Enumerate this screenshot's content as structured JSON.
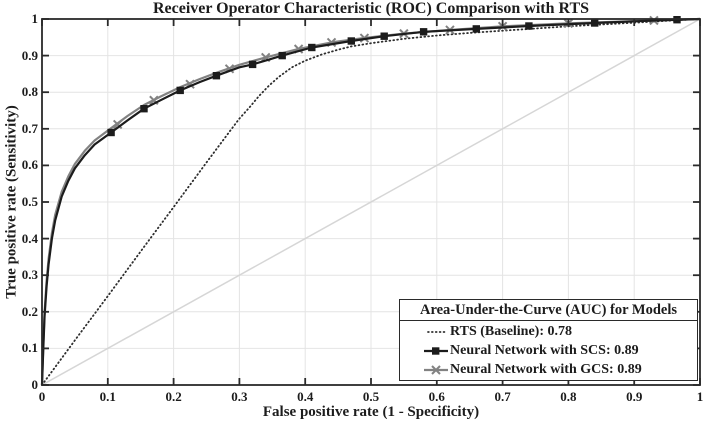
{
  "chart_data": {
    "type": "line",
    "title": "Receiver Operator Characteristic (ROC) Comparison with RTS",
    "xlabel": "False positive rate (1 - Specificity)",
    "ylabel": "True positive rate (Sensitivity)",
    "xlim": [
      0,
      1
    ],
    "ylim": [
      0,
      1
    ],
    "xticks": [
      "0",
      "0.1",
      "0.2",
      "0.3",
      "0.4",
      "0.5",
      "0.6",
      "0.7",
      "0.8",
      "0.9",
      "1"
    ],
    "yticks": [
      "0",
      "0.1",
      "0.2",
      "0.3",
      "0.4",
      "0.5",
      "0.6",
      "0.7",
      "0.8",
      "0.9",
      "1"
    ],
    "grid": true,
    "grid_color": "#e4e4e4",
    "axis_color": "#2a2a2a",
    "legend": {
      "title": "Area-Under-the-Curve (AUC) for Models",
      "position": "bottom-right",
      "entries": [
        {
          "label": "RTS (Baseline): 0.78",
          "style": "dotted",
          "color": "#2e2e2e",
          "auc": 0.78
        },
        {
          "label": "Neural Network with SCS: 0.89",
          "style": "solid-square",
          "color": "#1c1c1c",
          "auc": 0.89
        },
        {
          "label": "Neural Network with GCS: 0.89",
          "style": "solid-x",
          "color": "#828282",
          "auc": 0.89
        }
      ]
    },
    "reference_line": {
      "name": "chance-diagonal",
      "color": "#d6d6d6",
      "points": [
        [
          0,
          0
        ],
        [
          1,
          1
        ]
      ]
    },
    "series": [
      {
        "name": "RTS (Baseline)",
        "auc": 0.78,
        "style": "dotted",
        "color": "#2e2e2e",
        "points": [
          [
            0,
            0
          ],
          [
            0.05,
            0.122
          ],
          [
            0.1,
            0.243
          ],
          [
            0.15,
            0.365
          ],
          [
            0.2,
            0.486
          ],
          [
            0.25,
            0.608
          ],
          [
            0.285,
            0.692
          ],
          [
            0.3,
            0.728
          ],
          [
            0.315,
            0.758
          ],
          [
            0.33,
            0.79
          ],
          [
            0.345,
            0.818
          ],
          [
            0.36,
            0.842
          ],
          [
            0.38,
            0.868
          ],
          [
            0.4,
            0.886
          ],
          [
            0.425,
            0.903
          ],
          [
            0.45,
            0.916
          ],
          [
            0.47,
            0.925
          ],
          [
            0.5,
            0.934
          ],
          [
            0.55,
            0.946
          ],
          [
            0.6,
            0.955
          ],
          [
            0.65,
            0.962
          ],
          [
            0.7,
            0.968
          ],
          [
            0.75,
            0.974
          ],
          [
            0.8,
            0.98
          ],
          [
            0.85,
            0.985
          ],
          [
            0.9,
            0.99
          ],
          [
            0.95,
            0.995
          ],
          [
            1,
            1
          ]
        ]
      },
      {
        "name": "Neural Network with GCS",
        "auc": 0.89,
        "style": "solid",
        "marker": "x",
        "color": "#828282",
        "points": [
          [
            0,
            0
          ],
          [
            0.002,
            0.11
          ],
          [
            0.004,
            0.2
          ],
          [
            0.007,
            0.285
          ],
          [
            0.01,
            0.345
          ],
          [
            0.015,
            0.415
          ],
          [
            0.02,
            0.465
          ],
          [
            0.03,
            0.528
          ],
          [
            0.04,
            0.57
          ],
          [
            0.05,
            0.604
          ],
          [
            0.065,
            0.64
          ],
          [
            0.08,
            0.668
          ],
          [
            0.105,
            0.702
          ],
          [
            0.13,
            0.735
          ],
          [
            0.155,
            0.765
          ],
          [
            0.18,
            0.788
          ],
          [
            0.21,
            0.814
          ],
          [
            0.24,
            0.836
          ],
          [
            0.265,
            0.853
          ],
          [
            0.3,
            0.875
          ],
          [
            0.34,
            0.895
          ],
          [
            0.39,
            0.918
          ],
          [
            0.44,
            0.936
          ],
          [
            0.49,
            0.948
          ],
          [
            0.55,
            0.96
          ],
          [
            0.62,
            0.97
          ],
          [
            0.7,
            0.98
          ],
          [
            0.8,
            0.988
          ],
          [
            0.93,
            0.996
          ],
          [
            1,
            1
          ]
        ],
        "marker_points": [
          [
            0.115,
            0.712
          ],
          [
            0.17,
            0.778
          ],
          [
            0.225,
            0.822
          ],
          [
            0.285,
            0.864
          ],
          [
            0.34,
            0.895
          ],
          [
            0.39,
            0.918
          ],
          [
            0.44,
            0.936
          ],
          [
            0.49,
            0.948
          ],
          [
            0.55,
            0.96
          ],
          [
            0.62,
            0.97
          ],
          [
            0.7,
            0.98
          ],
          [
            0.8,
            0.988
          ],
          [
            0.93,
            0.996
          ]
        ]
      },
      {
        "name": "Neural Network with SCS",
        "auc": 0.89,
        "style": "solid",
        "marker": "square",
        "color": "#1c1c1c",
        "points": [
          [
            0,
            0
          ],
          [
            0.002,
            0.1
          ],
          [
            0.004,
            0.19
          ],
          [
            0.007,
            0.27
          ],
          [
            0.01,
            0.33
          ],
          [
            0.015,
            0.4
          ],
          [
            0.02,
            0.45
          ],
          [
            0.03,
            0.515
          ],
          [
            0.04,
            0.558
          ],
          [
            0.05,
            0.592
          ],
          [
            0.065,
            0.628
          ],
          [
            0.08,
            0.657
          ],
          [
            0.105,
            0.69
          ],
          [
            0.13,
            0.723
          ],
          [
            0.155,
            0.755
          ],
          [
            0.18,
            0.778
          ],
          [
            0.21,
            0.805
          ],
          [
            0.24,
            0.828
          ],
          [
            0.265,
            0.845
          ],
          [
            0.3,
            0.868
          ],
          [
            0.32,
            0.876
          ],
          [
            0.345,
            0.889
          ],
          [
            0.365,
            0.9
          ],
          [
            0.41,
            0.922
          ],
          [
            0.47,
            0.94
          ],
          [
            0.52,
            0.953
          ],
          [
            0.58,
            0.965
          ],
          [
            0.66,
            0.973
          ],
          [
            0.74,
            0.981
          ],
          [
            0.84,
            0.989
          ],
          [
            0.92,
            0.995
          ],
          [
            1,
            1
          ]
        ],
        "marker_points": [
          [
            0.105,
            0.69
          ],
          [
            0.155,
            0.755
          ],
          [
            0.21,
            0.805
          ],
          [
            0.265,
            0.845
          ],
          [
            0.32,
            0.876
          ],
          [
            0.365,
            0.9
          ],
          [
            0.41,
            0.922
          ],
          [
            0.47,
            0.94
          ],
          [
            0.52,
            0.953
          ],
          [
            0.58,
            0.965
          ],
          [
            0.66,
            0.973
          ],
          [
            0.74,
            0.981
          ],
          [
            0.84,
            0.989
          ],
          [
            0.965,
            0.998
          ]
        ]
      }
    ]
  }
}
